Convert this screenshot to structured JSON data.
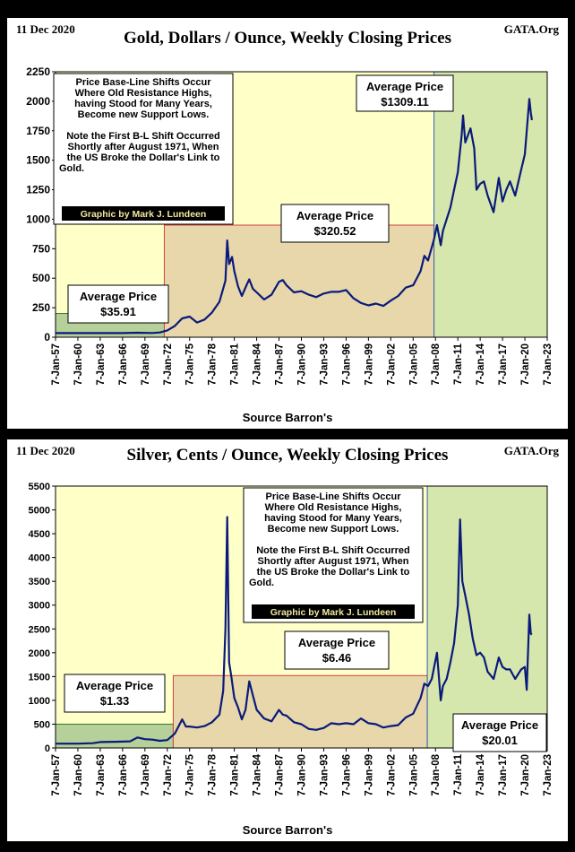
{
  "chart_data": [
    {
      "type": "line",
      "date": "11 Dec 2020",
      "site": "GATA.Org",
      "title": "Gold, Dollars / Ounce, Weekly Closing Prices",
      "source": "Source Barron's",
      "y_ticks": [
        0,
        250,
        500,
        750,
        1000,
        1250,
        1500,
        1750,
        2000,
        2250
      ],
      "ylim": [
        0,
        2250
      ],
      "x_ticks": [
        "7-Jan-57",
        "7-Jan-60",
        "7-Jan-63",
        "7-Jan-66",
        "7-Jan-69",
        "7-Jan-72",
        "7-Jan-75",
        "7-Jan-78",
        "7-Jan-81",
        "7-Jan-84",
        "7-Jan-87",
        "7-Jan-90",
        "7-Jan-93",
        "7-Jan-96",
        "7-Jan-99",
        "7-Jan-02",
        "7-Jan-05",
        "7-Jan-08",
        "7-Jan-11",
        "7-Jan-14",
        "7-Jan-17",
        "7-Jan-20",
        "7-Jan-23"
      ],
      "xlim": [
        1957,
        2023
      ],
      "series": [
        {
          "color": "#0a1a7a",
          "points": [
            [
              1957,
              35
            ],
            [
              1960,
              35
            ],
            [
              1963,
              35
            ],
            [
              1966,
              35
            ],
            [
              1968,
              38
            ],
            [
              1970,
              36
            ],
            [
              1971,
              40
            ],
            [
              1972,
              58
            ],
            [
              1973,
              95
            ],
            [
              1974,
              160
            ],
            [
              1975,
              175
            ],
            [
              1976,
              125
            ],
            [
              1977,
              150
            ],
            [
              1978,
              210
            ],
            [
              1979,
              300
            ],
            [
              1979.8,
              480
            ],
            [
              1980.05,
              820
            ],
            [
              1980.3,
              620
            ],
            [
              1980.7,
              680
            ],
            [
              1981,
              560
            ],
            [
              1981.5,
              430
            ],
            [
              1982,
              350
            ],
            [
              1982.7,
              450
            ],
            [
              1983,
              490
            ],
            [
              1983.5,
              410
            ],
            [
              1984,
              380
            ],
            [
              1985,
              320
            ],
            [
              1986,
              360
            ],
            [
              1987,
              470
            ],
            [
              1987.5,
              485
            ],
            [
              1988,
              440
            ],
            [
              1989,
              380
            ],
            [
              1990,
              390
            ],
            [
              1991,
              360
            ],
            [
              1992,
              340
            ],
            [
              1993,
              370
            ],
            [
              1994,
              385
            ],
            [
              1995,
              385
            ],
            [
              1996,
              400
            ],
            [
              1997,
              330
            ],
            [
              1998,
              290
            ],
            [
              1999,
              270
            ],
            [
              2000,
              285
            ],
            [
              2001,
              265
            ],
            [
              2002,
              310
            ],
            [
              2003,
              350
            ],
            [
              2004,
              420
            ],
            [
              2005,
              440
            ],
            [
              2006,
              560
            ],
            [
              2006.5,
              690
            ],
            [
              2007,
              650
            ],
            [
              2007.8,
              830
            ],
            [
              2008.2,
              950
            ],
            [
              2008.7,
              780
            ],
            [
              2009,
              900
            ],
            [
              2009.5,
              1000
            ],
            [
              2010,
              1100
            ],
            [
              2010.5,
              1250
            ],
            [
              2011,
              1400
            ],
            [
              2011.5,
              1700
            ],
            [
              2011.7,
              1880
            ],
            [
              2012,
              1650
            ],
            [
              2012.7,
              1770
            ],
            [
              2013.2,
              1600
            ],
            [
              2013.5,
              1250
            ],
            [
              2014,
              1300
            ],
            [
              2014.5,
              1320
            ],
            [
              2015,
              1200
            ],
            [
              2015.8,
              1060
            ],
            [
              2016.5,
              1350
            ],
            [
              2017,
              1150
            ],
            [
              2017.5,
              1250
            ],
            [
              2018,
              1320
            ],
            [
              2018.7,
              1200
            ],
            [
              2019.5,
              1420
            ],
            [
              2020,
              1550
            ],
            [
              2020.6,
              2020
            ],
            [
              2020.8,
              1900
            ],
            [
              2020.95,
              1840
            ]
          ]
        }
      ],
      "zones": [
        {
          "x0": 1957,
          "x1": 1971.6,
          "level": 201,
          "label": "Average Price",
          "value": "$35.91"
        },
        {
          "x0": 1971.6,
          "x1": 2007.8,
          "level": 950,
          "label": "Average Price",
          "value": "$320.52"
        },
        {
          "x0": 2007.8,
          "x1": 2023,
          "level": 2250,
          "label": "Average Price",
          "value": "$1309.11"
        }
      ],
      "note": [
        "Price Base-Line Shifts Occur",
        "Where Old Resistance Highs,",
        "having Stood for Many Years,",
        "Become new Support Lows.",
        "",
        "Note the First B-L Shift Occurred",
        "Shortly after August 1971, When",
        "the US Broke the Dollar's Link to",
        "Gold."
      ],
      "credit": "Graphic by Mark J. Lundeen"
    },
    {
      "type": "line",
      "date": "11 Dec 2020",
      "site": "GATA.Org",
      "title": "Silver, Cents / Ounce, Weekly Closing Prices",
      "source": "Source Barron's",
      "y_ticks": [
        0,
        500,
        1000,
        1500,
        2000,
        2500,
        3000,
        3500,
        4000,
        4500,
        5000,
        5500
      ],
      "ylim": [
        0,
        5500
      ],
      "x_ticks": [
        "7-Jan-57",
        "7-Jan-60",
        "7-Jan-63",
        "7-Jan-66",
        "7-Jan-69",
        "7-Jan-72",
        "7-Jan-75",
        "7-Jan-78",
        "7-Jan-81",
        "7-Jan-84",
        "7-Jan-87",
        "7-Jan-90",
        "7-Jan-93",
        "7-Jan-96",
        "7-Jan-99",
        "7-Jan-02",
        "7-Jan-05",
        "7-Jan-08",
        "7-Jan-11",
        "7-Jan-14",
        "7-Jan-17",
        "7-Jan-20",
        "7-Jan-23"
      ],
      "xlim": [
        1957,
        2023
      ],
      "series": [
        {
          "color": "#0a1a7a",
          "points": [
            [
              1957,
              90
            ],
            [
              1960,
              91
            ],
            [
              1962,
              100
            ],
            [
              1963,
              125
            ],
            [
              1965,
              130
            ],
            [
              1967,
              140
            ],
            [
              1968,
              220
            ],
            [
              1969,
              185
            ],
            [
              1970,
              175
            ],
            [
              1971,
              150
            ],
            [
              1972,
              165
            ],
            [
              1973,
              300
            ],
            [
              1974,
              600
            ],
            [
              1974.5,
              450
            ],
            [
              1975,
              450
            ],
            [
              1976,
              430
            ],
            [
              1977,
              460
            ],
            [
              1978,
              540
            ],
            [
              1979,
              700
            ],
            [
              1979.5,
              1200
            ],
            [
              1979.8,
              2500
            ],
            [
              1980.05,
              4850
            ],
            [
              1980.3,
              1800
            ],
            [
              1980.6,
              1500
            ],
            [
              1981,
              1050
            ],
            [
              1981.5,
              850
            ],
            [
              1982,
              600
            ],
            [
              1982.5,
              800
            ],
            [
              1983,
              1400
            ],
            [
              1983.5,
              1100
            ],
            [
              1984,
              800
            ],
            [
              1985,
              620
            ],
            [
              1986,
              560
            ],
            [
              1987,
              800
            ],
            [
              1987.5,
              700
            ],
            [
              1988,
              680
            ],
            [
              1989,
              540
            ],
            [
              1990,
              500
            ],
            [
              1991,
              400
            ],
            [
              1992,
              380
            ],
            [
              1993,
              420
            ],
            [
              1994,
              520
            ],
            [
              1995,
              500
            ],
            [
              1996,
              520
            ],
            [
              1997,
              500
            ],
            [
              1998,
              620
            ],
            [
              1999,
              520
            ],
            [
              2000,
              500
            ],
            [
              2001,
              430
            ],
            [
              2002,
              460
            ],
            [
              2003,
              480
            ],
            [
              2004,
              640
            ],
            [
              2005,
              720
            ],
            [
              2006,
              1050
            ],
            [
              2006.5,
              1350
            ],
            [
              2007,
              1300
            ],
            [
              2007.5,
              1450
            ],
            [
              2008.2,
              2000
            ],
            [
              2008.7,
              1000
            ],
            [
              2009,
              1300
            ],
            [
              2009.5,
              1450
            ],
            [
              2010,
              1800
            ],
            [
              2010.5,
              2200
            ],
            [
              2011,
              3000
            ],
            [
              2011.3,
              4800
            ],
            [
              2011.6,
              3500
            ],
            [
              2012,
              3200
            ],
            [
              2012.5,
              2800
            ],
            [
              2013,
              2300
            ],
            [
              2013.5,
              1950
            ],
            [
              2014,
              2000
            ],
            [
              2014.5,
              1900
            ],
            [
              2015,
              1600
            ],
            [
              2015.8,
              1450
            ],
            [
              2016.5,
              1900
            ],
            [
              2017,
              1700
            ],
            [
              2017.5,
              1650
            ],
            [
              2018,
              1650
            ],
            [
              2018.7,
              1450
            ],
            [
              2019.5,
              1650
            ],
            [
              2020,
              1700
            ],
            [
              2020.25,
              1220
            ],
            [
              2020.6,
              2800
            ],
            [
              2020.8,
              2400
            ],
            [
              2020.95,
              2380
            ]
          ]
        }
      ],
      "zones": [
        {
          "x0": 1957,
          "x1": 1972.8,
          "level": 500,
          "label": "Average Price",
          "value": "$1.33"
        },
        {
          "x0": 1972.8,
          "x1": 2006.9,
          "level": 1520,
          "label": "Average Price",
          "value": "$6.46"
        },
        {
          "x0": 2006.9,
          "x1": 2023,
          "level": 5500,
          "label": "Average Price",
          "value": "$20.01"
        }
      ],
      "note": [
        "Price Base-Line Shifts Occur",
        "Where Old Resistance Highs,",
        "having Stood for Many Years,",
        "Become new Support Lows.",
        "",
        "Note the First B-L Shift Occurred",
        "Shortly after August 1971, When",
        "the US Broke the Dollar's Link to",
        "Gold."
      ],
      "credit": "Graphic by Mark J. Lundeen"
    }
  ]
}
